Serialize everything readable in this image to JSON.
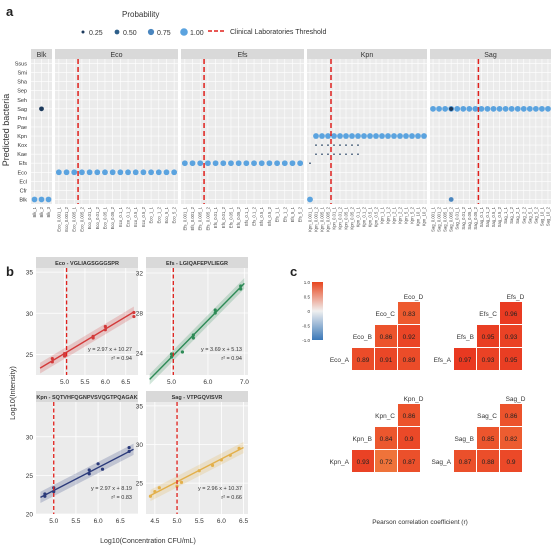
{
  "panel_labels": {
    "a": "a",
    "b": "b",
    "c": "c"
  },
  "colors": {
    "dot_025": "#1c3a5c",
    "dot_050": "#2e5f8a",
    "dot_075": "#4a86bf",
    "dot_100": "#5ba3df",
    "threshold": "#e0201c",
    "strip": "#d9d9d9",
    "panel_bg": "#ebebeb",
    "grid": "#ffffff",
    "eco": "#d33a3a",
    "efa": "#2e8b57",
    "kpn": "#2b3a7a",
    "sag": "#e3b04b",
    "heat_high": "#e8461f",
    "heat_mid": "#f0f0f0",
    "heat_low": "#3a78b8"
  },
  "legend_a": {
    "title": "Probability",
    "items": [
      "0.25",
      "0.50",
      "0.75",
      "1.00"
    ],
    "threshold_label": "Clinical Laboratories Threshold"
  },
  "panel_a": {
    "ylabel": "Predicted bacteria",
    "rows": [
      "Ssus",
      "Smi",
      "Sha",
      "Sep",
      "Seh",
      "Sag",
      "Pmi",
      "Pae",
      "Kpn",
      "Kox",
      "Kae",
      "Efs",
      "Eco",
      "Ecl",
      "Cfr",
      "Blk"
    ],
    "facets": [
      {
        "name": "Blk",
        "cols": 3,
        "row": "Blk",
        "threshold": null,
        "ticks": [
          "Blk_1",
          "Blk_2",
          "Blk_3"
        ]
      },
      {
        "name": "Eco",
        "cols": 16,
        "row": "Eco",
        "threshold": 2.5,
        "ticks": [
          "Eco_0.001_1",
          "Eco_0.001_2",
          "Eco_0.005_1",
          "Eco_0.005_2",
          "Eco_0.01_1",
          "Eco_0.01_2",
          "Eco_0.05_1",
          "Eco_0.05_2",
          "Eco_0.1_1",
          "Eco_0.1_2",
          "Eco_0.5_1",
          "Eco_0.5_2",
          "Eco_1_1",
          "Eco_1_2",
          "Eco_5_1",
          "Eco_5_2"
        ]
      },
      {
        "name": "Efs",
        "cols": 16,
        "row": "Efs",
        "threshold": 2.5,
        "ticks": [
          "Efs_0.001_1",
          "Efs_0.001_2",
          "Efs_0.005_1",
          "Efs_0.005_2",
          "Efs_0.01_1",
          "Efs_0.01_2",
          "Efs_0.05_1",
          "Efs_0.05_2",
          "Efs_0.1_1",
          "Efs_0.1_2",
          "Efs_0.5_1",
          "Efs_0.5_2",
          "Efs_1_1",
          "Efs_1_2",
          "Efs_5_1",
          "Efs_5_2"
        ]
      },
      {
        "name": "Kpn",
        "cols": 20,
        "row": "Kpn",
        "threshold": 3.5,
        "ticks": [
          "Kpn_0.001_1",
          "Kpn_0.001_2",
          "Kpn_0.005_1",
          "Kpn_0.005_2",
          "Kpn_0.01_1",
          "Kpn_0.01_2",
          "Kpn_0.05_1",
          "Kpn_0.05_2",
          "Kpn_0.1_1",
          "Kpn_0.1_2",
          "Kpn_0.5_1",
          "Kpn_0.5_2",
          "Kpn_1_1",
          "Kpn_1_2",
          "Kpn_2_1",
          "Kpn_2_2",
          "Kpn_5_1",
          "Kpn_5_2",
          "Kpn_10_1",
          "Kpn_10_2"
        ]
      },
      {
        "name": "Sag",
        "cols": 20,
        "row": "Sag",
        "threshold": 7.5,
        "ticks": [
          "Sag_0.001_1",
          "Sag_0.001_2",
          "Sag_0.005_1",
          "Sag_0.005_2",
          "Sag_0.01_1",
          "Sag_0.01_2",
          "Sag_0.05_1",
          "Sag_0.05_2",
          "Sag_0.1_1",
          "Sag_0.1_2",
          "Sag_0.5_1",
          "Sag_0.5_2",
          "Sag_1_1",
          "Sag_1_2",
          "Sag_2_1",
          "Sag_2_2",
          "Sag_5_1",
          "Sag_5_2",
          "Sag_10_1",
          "Sag_10_2"
        ]
      }
    ]
  },
  "chart_data": [
    {
      "type": "scatter",
      "panel": "b",
      "xlabel": "Log10(Concentration CFU/mL)",
      "ylabel": "Log10(Intensity)",
      "subplots": [
        {
          "title": "Eco - VGLIAGSGGGSPR",
          "xlim": [
            4.3,
            6.8
          ],
          "ylim": [
            22.5,
            35.5
          ],
          "xticks": [
            5.0,
            5.5,
            6.0,
            6.5
          ],
          "yticks": [
            25,
            30,
            35
          ],
          "threshold_x": 5.05,
          "slope": 2.97,
          "intercept": 10.27,
          "equation": "y = 2.97 x + 10.27",
          "r2": "r² = 0.94",
          "points": [
            [
              4.7,
              24.1
            ],
            [
              4.7,
              24.5
            ],
            [
              5.0,
              25.1
            ],
            [
              5.0,
              24.8
            ],
            [
              5.7,
              27.2
            ],
            [
              5.7,
              27.0
            ],
            [
              6.0,
              28.0
            ],
            [
              6.0,
              28.4
            ],
            [
              6.7,
              30.1
            ],
            [
              6.7,
              29.6
            ]
          ]
        },
        {
          "title": "Efs - LGIQAFEPVLIEGR",
          "xlim": [
            4.3,
            7.1
          ],
          "ylim": [
            21.8,
            32.5
          ],
          "xticks": [
            5.0,
            6.0,
            7.0
          ],
          "yticks": [
            24,
            28,
            32
          ],
          "threshold_x": 5.05,
          "slope": 3.69,
          "intercept": 5.13,
          "equation": "y = 3.69 x + 5.13",
          "r2": "r² = 0.94",
          "points": [
            [
              5.0,
              23.6
            ],
            [
              5.0,
              23.9
            ],
            [
              5.3,
              24.1
            ],
            [
              5.6,
              25.8
            ],
            [
              5.6,
              25.5
            ],
            [
              6.2,
              28.3
            ],
            [
              6.2,
              28.0
            ],
            [
              6.9,
              30.4
            ],
            [
              6.9,
              30.7
            ]
          ]
        },
        {
          "title": "Kpn - SQTVHFQGNPVSVQGTPQAGAK",
          "xlim": [
            4.6,
            6.9
          ],
          "ylim": [
            20.0,
            34.5
          ],
          "xticks": [
            5.0,
            5.5,
            6.0,
            6.5
          ],
          "yticks": [
            20,
            25,
            30
          ],
          "threshold_x": 5.0,
          "slope": 2.97,
          "intercept": 8.19,
          "equation": "y = 2.97 x + 8.19",
          "r2": "r² = 0.83",
          "points": [
            [
              4.8,
              22.3
            ],
            [
              4.8,
              22.6
            ],
            [
              5.0,
              23.4
            ],
            [
              5.0,
              22.9
            ],
            [
              5.8,
              25.7
            ],
            [
              5.8,
              25.2
            ],
            [
              6.0,
              26.5
            ],
            [
              6.1,
              25.8
            ],
            [
              6.7,
              28.1
            ],
            [
              6.7,
              28.6
            ]
          ]
        },
        {
          "title": "Sag - VTPGQVISVR",
          "xlim": [
            4.3,
            6.6
          ],
          "ylim": [
            21.0,
            35.5
          ],
          "xticks": [
            4.5,
            5.0,
            5.5,
            6.0,
            6.5
          ],
          "yticks": [
            25,
            30,
            35
          ],
          "threshold_x": 5.0,
          "slope": 2.96,
          "intercept": 10.37,
          "equation": "y = 2.96 x + 10.37",
          "r2": "r² = 0.66",
          "points": [
            [
              4.4,
              23.3
            ],
            [
              4.5,
              23.9
            ],
            [
              4.6,
              24.4
            ],
            [
              5.0,
              24.6
            ],
            [
              5.1,
              25.1
            ],
            [
              5.5,
              26.6
            ],
            [
              5.8,
              27.3
            ],
            [
              6.0,
              28.0
            ],
            [
              6.2,
              28.6
            ],
            [
              6.4,
              29.5
            ]
          ]
        }
      ]
    },
    {
      "type": "heatmap",
      "panel": "c",
      "xlabel": "Pearson correlation coefficient (r)",
      "colorbar_ticks": [
        "1.0",
        "0.5",
        "0",
        "-0.5",
        "-1.0"
      ],
      "blocks": [
        {
          "name": "Eco",
          "col_labels": [
            "Eco_D"
          ],
          "row_labels": [
            "Eco_C",
            "Eco_B",
            "Eco_A"
          ],
          "cells": [
            [
              "0.83"
            ],
            [
              "0.86",
              "0.92"
            ],
            [
              "0.89",
              "0.91",
              "0.89"
            ]
          ]
        },
        {
          "name": "Efs",
          "col_labels": [
            "Efs_D"
          ],
          "row_labels": [
            "Efs_C",
            "Efs_B",
            "Efs_A"
          ],
          "cells": [
            [
              "0.96"
            ],
            [
              "0.95",
              "0.93"
            ],
            [
              "0.97",
              "0.93",
              "0.95"
            ]
          ]
        },
        {
          "name": "Kpn",
          "col_labels": [
            "Kpn_D"
          ],
          "row_labels": [
            "Kpn_C",
            "Kpn_B",
            "Kpn_A"
          ],
          "cells": [
            [
              "0.86"
            ],
            [
              "0.84",
              "0.9"
            ],
            [
              "0.93",
              "0.72",
              "0.87"
            ]
          ]
        },
        {
          "name": "Sag",
          "col_labels": [
            "Sag_D"
          ],
          "row_labels": [
            "Sag_C",
            "Sag_B",
            "Sag_A"
          ],
          "cells": [
            [
              "0.86"
            ],
            [
              "0.85",
              "0.82"
            ],
            [
              "0.87",
              "0.88",
              "0.9"
            ]
          ]
        }
      ]
    }
  ]
}
